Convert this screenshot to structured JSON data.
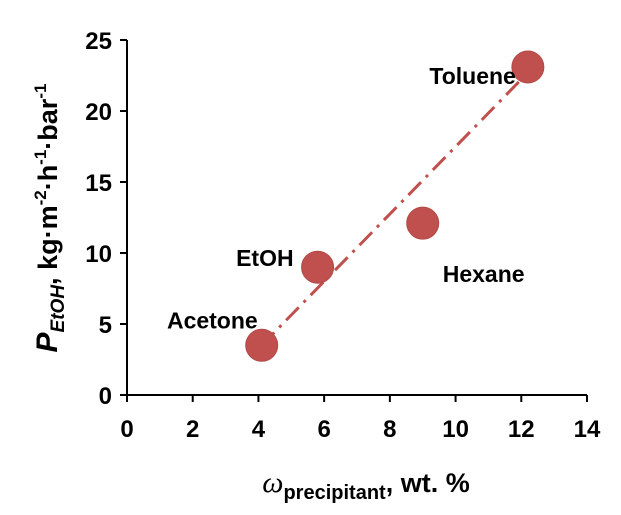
{
  "chart_data": {
    "type": "scatter",
    "points": [
      {
        "label": "Acetone",
        "x": 4.1,
        "y": 3.5
      },
      {
        "label": "EtOH",
        "x": 5.8,
        "y": 9.0
      },
      {
        "label": "Hexane",
        "x": 9.0,
        "y": 12.1
      },
      {
        "label": "Toluene",
        "x": 12.2,
        "y": 23.1
      }
    ],
    "trendline": {
      "style": "dash-dot",
      "from": {
        "x": 4.1,
        "y": 3.5
      },
      "to": {
        "x": 12.2,
        "y": 22.7
      }
    },
    "xaxis": {
      "label_symbol": "ω",
      "label_subscript": "precipitant",
      "label_suffix": ", wt. %",
      "range": [
        0,
        14
      ],
      "ticks": [
        "0",
        "2",
        "4",
        "6",
        "8",
        "10",
        "12",
        "14"
      ]
    },
    "yaxis": {
      "label_symbol": "P",
      "label_subscript": "EtOH",
      "label_units_before": ", kg·m",
      "label_exp1": "-2",
      "label_units_mid1": "·h",
      "label_exp2": "-1",
      "label_units_mid2": "·bar",
      "label_exp3": "-1",
      "range": [
        0,
        25
      ],
      "ticks": [
        "0",
        "5",
        "10",
        "15",
        "20",
        "25"
      ]
    },
    "colors": {
      "marker": "#c0504d",
      "trendline": "#c0504d",
      "axis": "#000000"
    },
    "grid": false,
    "legend": "none"
  }
}
